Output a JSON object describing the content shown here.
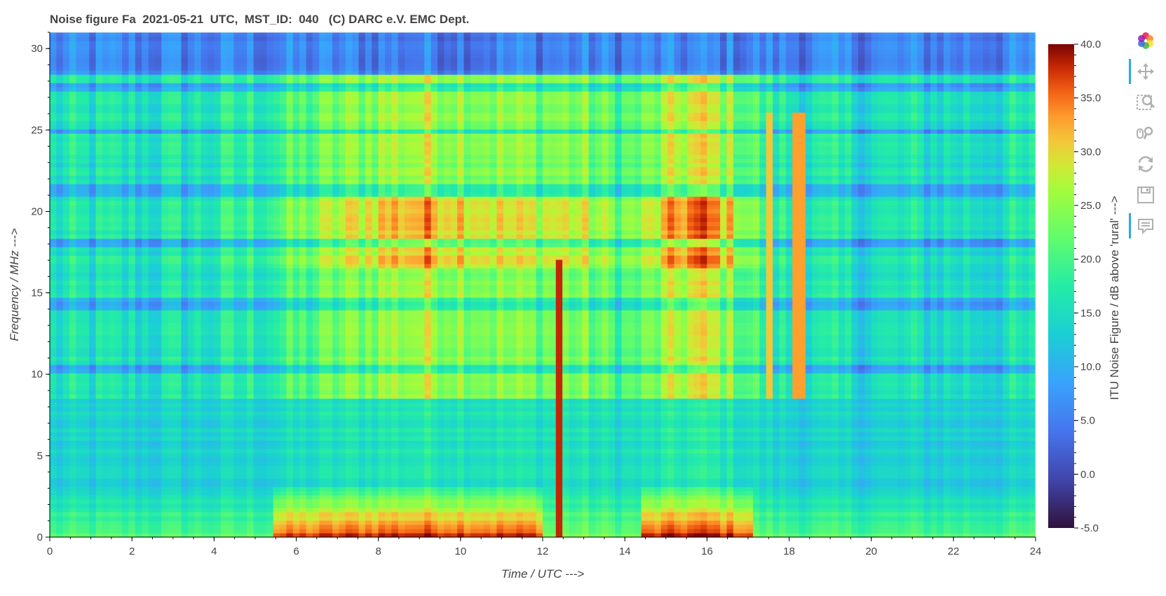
{
  "title": "Noise figure Fa  2021-05-21  UTC,  MST_ID:  040   (C) DARC e.V. EMC Dept.",
  "chart_data": {
    "type": "heatmap",
    "title": "Noise figure Fa  2021-05-21  UTC,  MST_ID:  040   (C) DARC e.V. EMC Dept.",
    "xlabel": "Time / UTC --->",
    "ylabel": "Frequency / MHz --->",
    "colorbar_label": "ITU Noise Figure / dB above 'rural' --->",
    "xlim": [
      0,
      24
    ],
    "ylim": [
      0,
      31
    ],
    "zlim": [
      -5,
      40
    ],
    "x_ticks": [
      "0",
      "2",
      "4",
      "6",
      "8",
      "10",
      "12",
      "14",
      "16",
      "18",
      "20",
      "22",
      "24"
    ],
    "y_ticks": [
      "0",
      "5",
      "10",
      "15",
      "20",
      "25",
      "30"
    ],
    "colorbar_ticks": [
      "40.0",
      "35.0",
      "30.0",
      "25.0",
      "20.0",
      "15.0",
      "10.0",
      "5.0",
      "0.0",
      "-5.0"
    ],
    "colormap": "turbo",
    "grid": false,
    "colorbar_position": "right",
    "notes": {
      "high_noise_times_utc": [
        [
          6,
          12
        ],
        [
          14.5,
          17
        ]
      ],
      "strong_bands_mhz": [
        [
          0,
          3
        ],
        [
          18,
          21
        ]
      ],
      "quiet_bands_mhz": [
        [
          28.5,
          31
        ],
        [
          21,
          21.5
        ],
        [
          14,
          14.5
        ],
        [
          10,
          10.5
        ]
      ]
    }
  },
  "toolbar": {
    "tools": [
      {
        "name": "bokeh-logo-icon",
        "active": false
      },
      {
        "name": "pan-icon",
        "active": true
      },
      {
        "name": "box-zoom-icon",
        "active": false
      },
      {
        "name": "wheel-zoom-icon",
        "active": false
      },
      {
        "name": "reset-icon",
        "active": false
      },
      {
        "name": "save-icon",
        "active": false
      },
      {
        "name": "hover-icon",
        "active": true
      }
    ]
  }
}
